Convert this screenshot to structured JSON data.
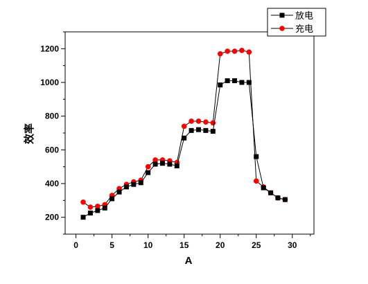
{
  "chart_data": {
    "type": "line",
    "xlabel": "A",
    "ylabel": "效率",
    "xlim": [
      -1.5,
      33
    ],
    "ylim": [
      100,
      1300
    ],
    "xticks": [
      0,
      5,
      10,
      15,
      20,
      25,
      30
    ],
    "yticks": [
      200,
      400,
      600,
      800,
      1000,
      1200
    ],
    "grid": false,
    "legend_position": "top-right",
    "series": [
      {
        "name": "放电",
        "marker": "square",
        "color": "#000000",
        "x": [
          1,
          2,
          3,
          4,
          5,
          6,
          7,
          8,
          9,
          10,
          11,
          12,
          13,
          14,
          15,
          16,
          17,
          18,
          19,
          20,
          21,
          22,
          23,
          24,
          25,
          26,
          27,
          28,
          29
        ],
        "y": [
          200,
          225,
          240,
          255,
          310,
          350,
          380,
          395,
          405,
          465,
          515,
          520,
          515,
          505,
          670,
          715,
          720,
          715,
          710,
          985,
          1010,
          1010,
          1000,
          1000,
          560,
          375,
          345,
          315,
          305
        ]
      },
      {
        "name": "充电",
        "marker": "circle",
        "color": "#ff0000",
        "x": [
          1,
          2,
          3,
          4,
          5,
          6,
          7,
          8,
          9,
          10,
          11,
          12,
          13,
          14,
          15,
          16,
          17,
          18,
          19,
          20,
          21,
          22,
          23,
          24,
          25,
          26,
          27,
          28,
          29
        ],
        "y": [
          290,
          260,
          265,
          275,
          330,
          370,
          395,
          410,
          420,
          500,
          540,
          540,
          535,
          525,
          740,
          770,
          770,
          765,
          760,
          1170,
          1185,
          1185,
          1190,
          1180,
          415,
          380,
          345,
          315,
          305
        ]
      }
    ]
  }
}
